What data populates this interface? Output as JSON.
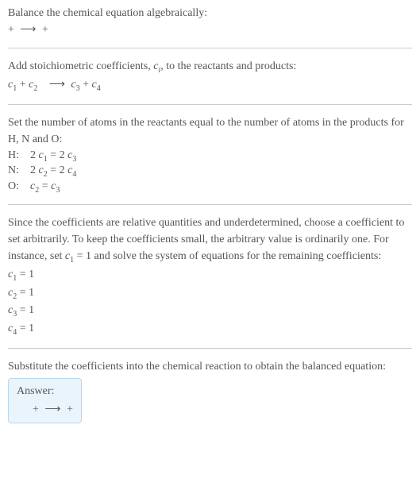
{
  "intro": {
    "line1": "Balance the chemical equation algebraically:",
    "line2_lhs": " + ",
    "line2_arrow": "⟶",
    "line2_rhs": " + "
  },
  "stoich": {
    "line1_pre": "Add stoichiometric coefficients, ",
    "line1_ci": "c",
    "line1_ci_sub": "i",
    "line1_post": ", to the reactants and products:",
    "eq_c1": "c",
    "eq_c1_sub": "1",
    "eq_plus": " + ",
    "eq_c2": "c",
    "eq_c2_sub": "2",
    "eq_arrow": "⟶",
    "eq_c3": "c",
    "eq_c3_sub": "3",
    "eq_c4": "c",
    "eq_c4_sub": "4"
  },
  "atoms": {
    "line1": "Set the number of atoms in the reactants equal to the number of atoms in the products for H, N and O:",
    "rows": [
      {
        "label": "H:",
        "lhs_coef": "2 ",
        "lhs_c": "c",
        "lhs_sub": "1",
        "mid": " = 2 ",
        "rhs_c": "c",
        "rhs_sub": "3"
      },
      {
        "label": "N:",
        "lhs_coef": "2 ",
        "lhs_c": "c",
        "lhs_sub": "2",
        "mid": " = 2 ",
        "rhs_c": "c",
        "rhs_sub": "4"
      },
      {
        "label": "O:",
        "lhs_coef": "",
        "lhs_c": "c",
        "lhs_sub": "2",
        "mid": " = ",
        "rhs_c": "c",
        "rhs_sub": "3"
      }
    ]
  },
  "solve": {
    "para_a": "Since the coefficients are relative quantities and underdetermined, choose a coefficient to set arbitrarily. To keep the coefficients small, the arbitrary value is ordinarily one. For instance, set ",
    "para_c": "c",
    "para_c_sub": "1",
    "para_b": " = 1 and solve the system of equations for the remaining coefficients:",
    "results": [
      {
        "c": "c",
        "sub": "1",
        "val": " = 1"
      },
      {
        "c": "c",
        "sub": "2",
        "val": " = 1"
      },
      {
        "c": "c",
        "sub": "3",
        "val": " = 1"
      },
      {
        "c": "c",
        "sub": "4",
        "val": " = 1"
      }
    ]
  },
  "substitute": {
    "line1": "Substitute the coefficients into the chemical reaction to obtain the balanced equation:"
  },
  "answer": {
    "title": "Answer:",
    "lhs": " + ",
    "arrow": "⟶",
    "rhs": " + "
  }
}
